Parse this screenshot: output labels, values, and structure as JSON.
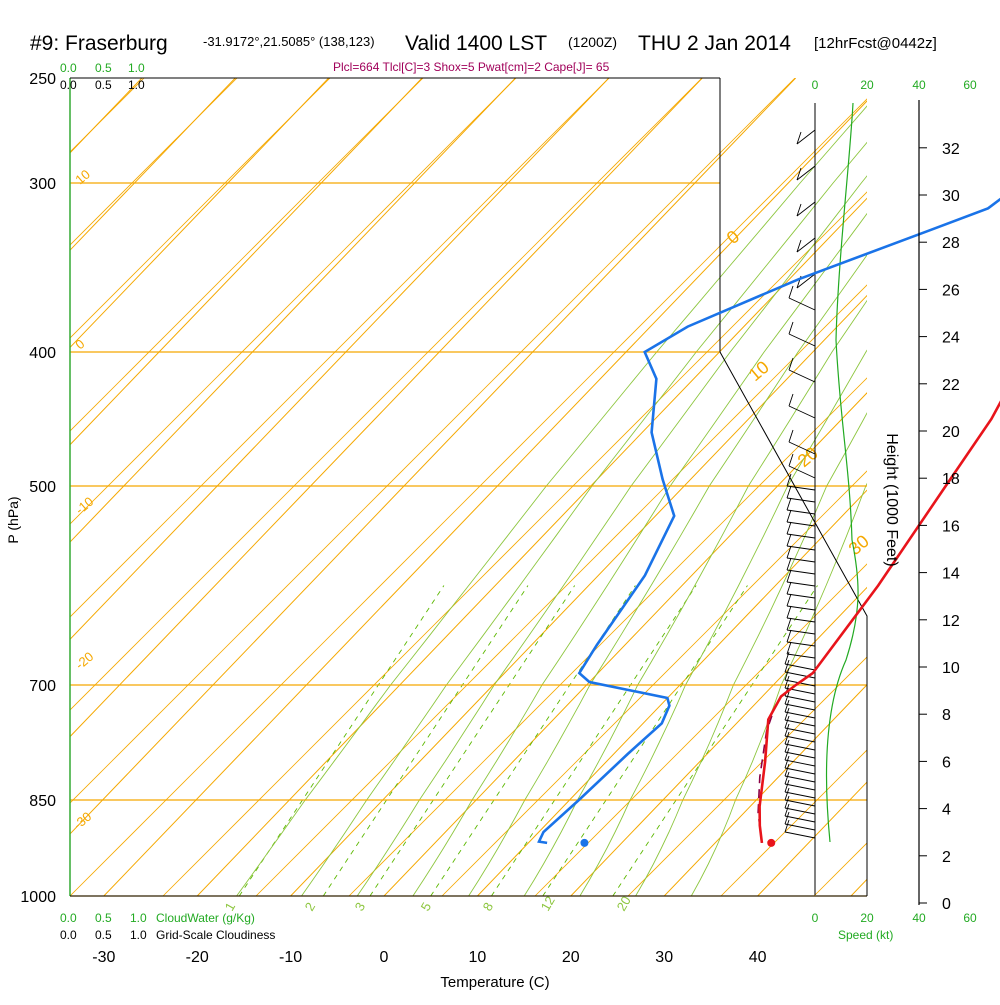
{
  "header": {
    "station": "#9: Fraserburg",
    "coords": "-31.9172°,21.5085° (138,123)",
    "valid": "Valid 1400 LST",
    "zulu": "(1200Z)",
    "date": "THU 2 Jan 2014",
    "forecast": "[12hrFcst@0442z]",
    "indices": "Plcl=664 Tlcl[C]=3 Shox=5 Pwat[cm]=2 Cape[J]= 65"
  },
  "colors": {
    "temperature": "#e8141b",
    "dewpoint": "#1a73e8",
    "parcel": "#8b0045",
    "isotherm": "#f5a800",
    "mixing_ratio": "#5cb800",
    "moist_adiabat": "#8dc63f",
    "cloud_green": "#22aa22",
    "indices": "#a0005a"
  },
  "labels": {
    "cloudwater_scale": [
      "0.0",
      "0.5",
      "1.0"
    ],
    "cloudiness_scale": [
      "0.0",
      "0.5",
      "1.0"
    ],
    "cloudwater_title": "CloudWater (g/Kg)",
    "cloudiness_title": "Grid-Scale Cloudiness",
    "speed_title": "Speed (kt)",
    "speed_ticks": [
      "0",
      "20",
      "40",
      "60"
    ],
    "height_title": "Height (1000 Feet)"
  },
  "chart_data": {
    "type": "line",
    "title": "#9: Fraserburg  Valid 1400 LST THU 2 Jan 2014",
    "xlabel": "Temperature (C)",
    "ylabel": "P (hPa)",
    "xlim": [
      -33,
      47
    ],
    "ylim_pressure": [
      1050,
      250
    ],
    "x_ticks": [
      -30,
      -20,
      -10,
      0,
      10,
      20,
      30,
      40
    ],
    "pressure_ticks": [
      250,
      300,
      400,
      500,
      700,
      850,
      1000
    ],
    "height_ticks_kft": [
      0,
      2,
      4,
      6,
      8,
      10,
      12,
      14,
      16,
      18,
      20,
      22,
      24,
      26,
      28,
      30,
      32
    ],
    "isotherm_labels": [
      "10",
      "0",
      "-10",
      "-20",
      "-30",
      "0",
      "10",
      "20",
      "30"
    ],
    "mixing_ratio_labels": [
      "1",
      "2",
      "3",
      "5",
      "8",
      "12",
      "20"
    ],
    "series": [
      {
        "name": "Temperature",
        "points": [
          [
            35,
            917
          ],
          [
            33,
            890
          ],
          [
            31,
            860
          ],
          [
            27,
            800
          ],
          [
            23,
            745
          ],
          [
            22,
            715
          ],
          [
            22.4,
            700
          ],
          [
            23,
            688
          ],
          [
            21,
            600
          ],
          [
            18,
            500
          ],
          [
            16,
            450
          ],
          [
            13,
            400
          ],
          [
            10,
            350
          ],
          [
            6,
            300
          ],
          [
            4,
            283
          ],
          [
            -0.5,
            262
          ]
        ]
      },
      {
        "name": "Dewpoint",
        "points": [
          [
            12,
            917
          ],
          [
            11,
            915
          ],
          [
            10.5,
            900
          ],
          [
            11,
            850
          ],
          [
            11.5,
            790
          ],
          [
            12,
            750
          ],
          [
            11,
            727
          ],
          [
            10,
            717
          ],
          [
            0,
            697
          ],
          [
            -2,
            688
          ],
          [
            -3,
            660
          ],
          [
            -5,
            590
          ],
          [
            -8,
            530
          ],
          [
            -13,
            495
          ],
          [
            -19,
            460
          ],
          [
            -24,
            420
          ],
          [
            -28,
            400
          ],
          [
            -26,
            385
          ],
          [
            -19,
            357
          ],
          [
            -10,
            328
          ],
          [
            -6,
            315
          ],
          [
            -5,
            300
          ],
          [
            -3,
            285
          ],
          [
            -2.5,
            273
          ],
          [
            -0.5,
            262
          ]
        ]
      },
      {
        "name": "Parcel",
        "points": [
          [
            35,
            917
          ],
          [
            31.5,
            870
          ],
          [
            28,
            820
          ],
          [
            24,
            760
          ],
          [
            23,
            740
          ]
        ]
      }
    ],
    "surface_temperature": 36,
    "surface_dewpoint": 16,
    "surface_pressure": 917
  }
}
